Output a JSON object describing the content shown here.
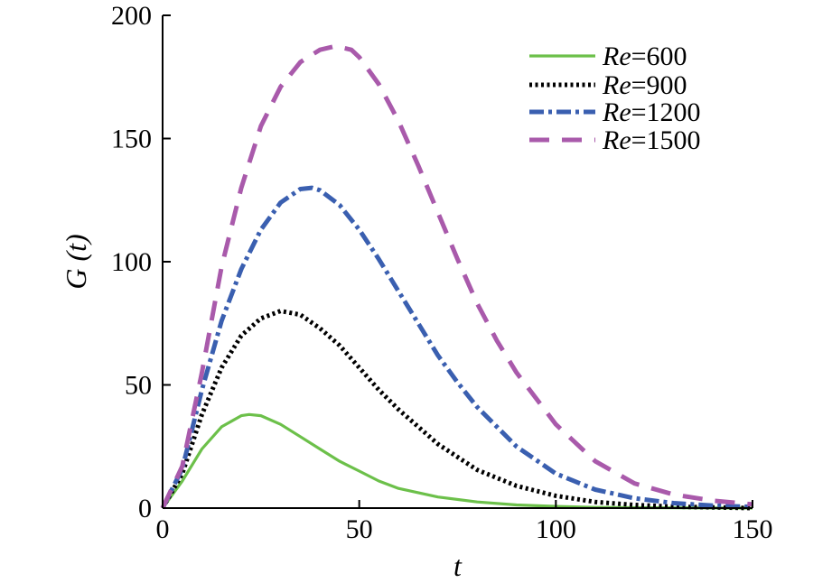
{
  "chart_data": {
    "type": "line",
    "title": "",
    "xlabel": "t",
    "ylabel": "G (t)",
    "xlim": [
      0,
      150
    ],
    "ylim": [
      0,
      200
    ],
    "xticks": [
      0,
      50,
      100,
      150
    ],
    "yticks": [
      0,
      50,
      100,
      150,
      200
    ],
    "grid": false,
    "legend_position": "top-right",
    "series": [
      {
        "name": "Re=600",
        "legend_prefix": "Re",
        "legend_value": "=600",
        "color": "#6cc04a",
        "style": "solid",
        "x": [
          0,
          5,
          10,
          15,
          20,
          22,
          25,
          30,
          35,
          40,
          45,
          50,
          55,
          60,
          70,
          80,
          90,
          100,
          110,
          120,
          130,
          140,
          150
        ],
        "y": [
          0,
          11,
          24,
          33,
          37.5,
          38,
          37.5,
          34,
          29,
          24,
          19,
          15,
          11,
          8,
          4.5,
          2.5,
          1.3,
          0.7,
          0.3,
          0.2,
          0.1,
          0.05,
          0
        ]
      },
      {
        "name": "Re=900",
        "legend_prefix": "Re",
        "legend_value": "=900",
        "color": "#000000",
        "style": "dotted",
        "x": [
          0,
          5,
          10,
          15,
          20,
          25,
          30,
          35,
          40,
          45,
          50,
          55,
          60,
          65,
          70,
          80,
          90,
          100,
          110,
          120,
          130,
          140,
          150
        ],
        "y": [
          0,
          14,
          38,
          57,
          70,
          77,
          80,
          78.5,
          73,
          66,
          57,
          48,
          40,
          33,
          26,
          15.5,
          9,
          5,
          2.5,
          1.3,
          0.6,
          0.3,
          0
        ]
      },
      {
        "name": "Re=1200",
        "legend_prefix": "Re",
        "legend_value": "=1200",
        "color": "#3a5fb0",
        "style": "dashdot",
        "x": [
          0,
          5,
          10,
          15,
          20,
          25,
          30,
          35,
          38,
          40,
          45,
          50,
          55,
          60,
          65,
          70,
          75,
          80,
          90,
          100,
          110,
          120,
          130,
          140,
          150
        ],
        "y": [
          0,
          16,
          48,
          76,
          97,
          113,
          124,
          129.5,
          130,
          129,
          123,
          113,
          101,
          88,
          75,
          62,
          51,
          41,
          25,
          14,
          7.5,
          4,
          2,
          1,
          0.5
        ]
      },
      {
        "name": "Re=1500",
        "legend_prefix": "Re",
        "legend_value": "=1500",
        "color": "#a95aab",
        "style": "dashed",
        "x": [
          0,
          5,
          10,
          15,
          20,
          25,
          30,
          35,
          40,
          44,
          48,
          50,
          55,
          60,
          65,
          70,
          75,
          80,
          85,
          90,
          100,
          110,
          120,
          130,
          140,
          150
        ],
        "y": [
          0,
          17,
          55,
          98,
          130,
          155,
          171,
          181,
          186,
          187.5,
          186,
          183,
          172,
          157,
          139,
          120,
          101,
          83,
          68,
          55,
          34,
          19,
          10,
          5.5,
          3,
          1.5
        ]
      }
    ]
  }
}
